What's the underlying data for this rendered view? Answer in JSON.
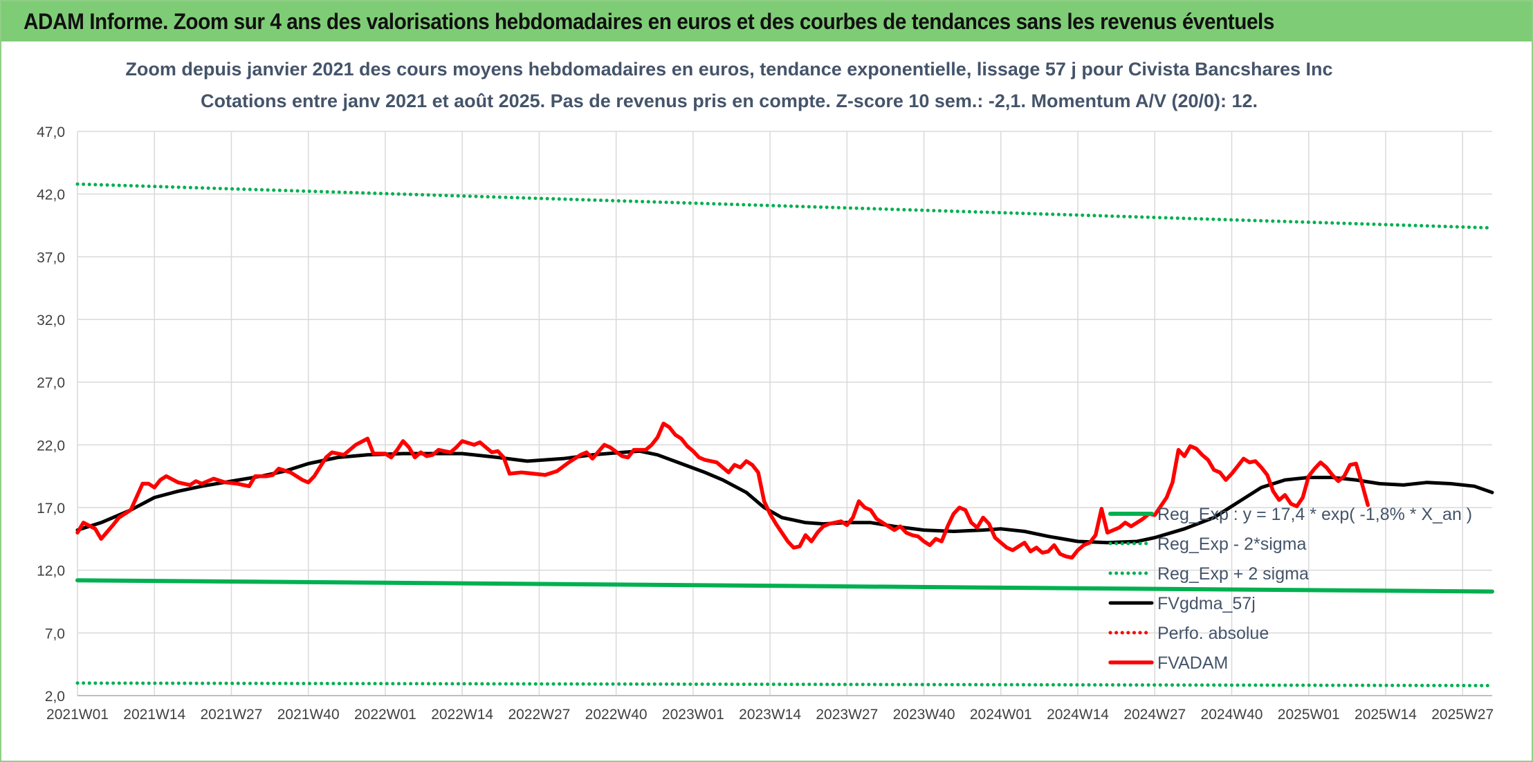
{
  "banner": {
    "title": "ADAM Informe. Zoom sur 4 ans des valorisations hebdomadaires en euros et des courbes de tendances sans les revenus éventuels"
  },
  "chart_data": {
    "type": "line",
    "title": "Zoom depuis janvier 2021 des cours moyens hebdomadaires en euros, tendance exponentielle, lissage 57 j pour Civista Bancshares Inc",
    "subtitle": "Cotations entre janv 2021 et août 2025. Pas de revenus pris en compte. Z-score 10 sem.: -2,1. Momentum A/V (20/0): 12.",
    "xlabel": "",
    "ylabel": "",
    "ylim": [
      2,
      47
    ],
    "yticks": [
      "2,0",
      "7,0",
      "12,0",
      "17,0",
      "22,0",
      "27,0",
      "32,0",
      "37,0",
      "42,0",
      "47,0"
    ],
    "x_range": [
      1,
      240
    ],
    "xticks": [
      {
        "x": 1,
        "label": "2021W01"
      },
      {
        "x": 14,
        "label": "2021W14"
      },
      {
        "x": 27,
        "label": "2021W27"
      },
      {
        "x": 40,
        "label": "2021W40"
      },
      {
        "x": 53,
        "label": "2022W01"
      },
      {
        "x": 66,
        "label": "2022W14"
      },
      {
        "x": 79,
        "label": "2022W27"
      },
      {
        "x": 92,
        "label": "2022W40"
      },
      {
        "x": 105,
        "label": "2023W01"
      },
      {
        "x": 118,
        "label": "2023W14"
      },
      {
        "x": 131,
        "label": "2023W27"
      },
      {
        "x": 144,
        "label": "2023W40"
      },
      {
        "x": 157,
        "label": "2024W01"
      },
      {
        "x": 170,
        "label": "2024W14"
      },
      {
        "x": 183,
        "label": "2024W27"
      },
      {
        "x": 196,
        "label": "2024W40"
      },
      {
        "x": 209,
        "label": "2025W01"
      },
      {
        "x": 222,
        "label": "2025W14"
      },
      {
        "x": 235,
        "label": "2025W27"
      }
    ],
    "grid": true,
    "legend_position": "lower-right",
    "series": [
      {
        "name": "Reg_Exp : y = 17,4 * exp( -1,8% * X_an )",
        "color": "#00b050",
        "style": "solid",
        "points": [
          [
            1,
            11.2
          ],
          [
            240,
            10.3
          ]
        ]
      },
      {
        "name": "Reg_Exp - 2*sigma",
        "color": "#00b050",
        "style": "dotted",
        "points": [
          [
            1,
            3.0
          ],
          [
            240,
            2.8
          ]
        ]
      },
      {
        "name": "Reg_Exp + 2 sigma",
        "color": "#00b050",
        "style": "dotted",
        "points": [
          [
            1,
            42.8
          ],
          [
            240,
            39.3
          ]
        ]
      },
      {
        "name": "FVgdma_57j",
        "color": "#000000",
        "style": "solid",
        "points": [
          [
            1,
            15.2
          ],
          [
            5,
            15.8
          ],
          [
            10,
            16.8
          ],
          [
            14,
            17.8
          ],
          [
            18,
            18.3
          ],
          [
            22,
            18.7
          ],
          [
            27,
            19.1
          ],
          [
            32,
            19.5
          ],
          [
            36,
            19.9
          ],
          [
            40,
            20.5
          ],
          [
            45,
            21.0
          ],
          [
            50,
            21.2
          ],
          [
            56,
            21.3
          ],
          [
            62,
            21.3
          ],
          [
            66,
            21.3
          ],
          [
            72,
            21.0
          ],
          [
            77,
            20.7
          ],
          [
            83,
            20.9
          ],
          [
            88,
            21.2
          ],
          [
            93,
            21.4
          ],
          [
            96,
            21.5
          ],
          [
            99,
            21.2
          ],
          [
            103,
            20.5
          ],
          [
            107,
            19.8
          ],
          [
            110,
            19.2
          ],
          [
            114,
            18.2
          ],
          [
            117,
            17.0
          ],
          [
            120,
            16.2
          ],
          [
            124,
            15.8
          ],
          [
            127,
            15.7
          ],
          [
            131,
            15.8
          ],
          [
            135,
            15.8
          ],
          [
            139,
            15.5
          ],
          [
            144,
            15.2
          ],
          [
            149,
            15.1
          ],
          [
            154,
            15.2
          ],
          [
            157,
            15.3
          ],
          [
            161,
            15.1
          ],
          [
            165,
            14.7
          ],
          [
            170,
            14.3
          ],
          [
            175,
            14.2
          ],
          [
            180,
            14.3
          ],
          [
            183,
            14.6
          ],
          [
            188,
            15.3
          ],
          [
            193,
            16.2
          ],
          [
            197,
            17.4
          ],
          [
            201,
            18.6
          ],
          [
            205,
            19.2
          ],
          [
            209,
            19.4
          ],
          [
            213,
            19.4
          ],
          [
            217,
            19.2
          ],
          [
            221,
            18.9
          ],
          [
            225,
            18.8
          ],
          [
            229,
            19.0
          ],
          [
            233,
            18.9
          ],
          [
            237,
            18.7
          ],
          [
            240,
            18.2
          ]
        ]
      },
      {
        "name": "Perfo. absolue",
        "color": "#ff0000",
        "style": "dotted",
        "points": []
      },
      {
        "name": "FVADAM",
        "color": "#ff0000",
        "style": "solid",
        "points": [
          [
            1,
            15.0
          ],
          [
            2,
            15.8
          ],
          [
            4,
            15.3
          ],
          [
            5,
            14.5
          ],
          [
            7,
            15.6
          ],
          [
            8,
            16.2
          ],
          [
            10,
            16.8
          ],
          [
            12,
            18.9
          ],
          [
            13,
            18.9
          ],
          [
            14,
            18.6
          ],
          [
            15,
            19.2
          ],
          [
            16,
            19.5
          ],
          [
            18,
            19.0
          ],
          [
            20,
            18.8
          ],
          [
            21,
            19.1
          ],
          [
            22,
            18.9
          ],
          [
            24,
            19.3
          ],
          [
            26,
            19.0
          ],
          [
            28,
            18.9
          ],
          [
            30,
            18.7
          ],
          [
            31,
            19.5
          ],
          [
            33,
            19.5
          ],
          [
            34,
            19.6
          ],
          [
            35,
            20.1
          ],
          [
            37,
            19.8
          ],
          [
            39,
            19.2
          ],
          [
            40,
            19.0
          ],
          [
            41,
            19.5
          ],
          [
            43,
            21.0
          ],
          [
            44,
            21.4
          ],
          [
            46,
            21.2
          ],
          [
            48,
            22.0
          ],
          [
            50,
            22.5
          ],
          [
            51,
            21.3
          ],
          [
            53,
            21.3
          ],
          [
            54,
            21.0
          ],
          [
            55,
            21.6
          ],
          [
            56,
            22.3
          ],
          [
            57,
            21.8
          ],
          [
            58,
            21.0
          ],
          [
            59,
            21.4
          ],
          [
            60,
            21.1
          ],
          [
            61,
            21.2
          ],
          [
            62,
            21.6
          ],
          [
            64,
            21.4
          ],
          [
            65,
            21.8
          ],
          [
            66,
            22.3
          ],
          [
            68,
            22.0
          ],
          [
            69,
            22.2
          ],
          [
            71,
            21.4
          ],
          [
            72,
            21.5
          ],
          [
            73,
            21.0
          ],
          [
            74,
            19.7
          ],
          [
            76,
            19.8
          ],
          [
            78,
            19.7
          ],
          [
            80,
            19.6
          ],
          [
            82,
            19.9
          ],
          [
            84,
            20.6
          ],
          [
            86,
            21.2
          ],
          [
            87,
            21.4
          ],
          [
            88,
            20.9
          ],
          [
            90,
            22.0
          ],
          [
            91,
            21.8
          ],
          [
            93,
            21.1
          ],
          [
            94,
            21.0
          ],
          [
            95,
            21.6
          ],
          [
            97,
            21.6
          ],
          [
            98,
            22.0
          ],
          [
            99,
            22.6
          ],
          [
            100,
            23.7
          ],
          [
            101,
            23.4
          ],
          [
            102,
            22.8
          ],
          [
            103,
            22.5
          ],
          [
            104,
            21.9
          ],
          [
            105,
            21.5
          ],
          [
            106,
            21.0
          ],
          [
            107,
            20.8
          ],
          [
            109,
            20.6
          ],
          [
            110,
            20.2
          ],
          [
            111,
            19.8
          ],
          [
            112,
            20.4
          ],
          [
            113,
            20.2
          ],
          [
            114,
            20.7
          ],
          [
            115,
            20.4
          ],
          [
            116,
            19.8
          ],
          [
            117,
            17.5
          ],
          [
            118,
            16.5
          ],
          [
            119,
            15.7
          ],
          [
            120,
            15.0
          ],
          [
            121,
            14.3
          ],
          [
            122,
            13.8
          ],
          [
            123,
            13.9
          ],
          [
            124,
            14.8
          ],
          [
            125,
            14.3
          ],
          [
            126,
            15.0
          ],
          [
            127,
            15.5
          ],
          [
            128,
            15.7
          ],
          [
            130,
            15.9
          ],
          [
            131,
            15.6
          ],
          [
            132,
            16.2
          ],
          [
            133,
            17.5
          ],
          [
            134,
            17.0
          ],
          [
            135,
            16.8
          ],
          [
            136,
            16.1
          ],
          [
            137,
            15.8
          ],
          [
            138,
            15.5
          ],
          [
            139,
            15.2
          ],
          [
            140,
            15.5
          ],
          [
            141,
            15.0
          ],
          [
            142,
            14.8
          ],
          [
            143,
            14.7
          ],
          [
            144,
            14.3
          ],
          [
            145,
            14.0
          ],
          [
            146,
            14.5
          ],
          [
            147,
            14.3
          ],
          [
            148,
            15.5
          ],
          [
            149,
            16.5
          ],
          [
            150,
            17.0
          ],
          [
            151,
            16.8
          ],
          [
            152,
            15.8
          ],
          [
            153,
            15.4
          ],
          [
            154,
            16.2
          ],
          [
            155,
            15.7
          ],
          [
            156,
            14.6
          ],
          [
            157,
            14.2
          ],
          [
            158,
            13.8
          ],
          [
            159,
            13.6
          ],
          [
            160,
            13.9
          ],
          [
            161,
            14.2
          ],
          [
            162,
            13.5
          ],
          [
            163,
            13.8
          ],
          [
            164,
            13.4
          ],
          [
            165,
            13.5
          ],
          [
            166,
            14.0
          ],
          [
            167,
            13.3
          ],
          [
            168,
            13.1
          ],
          [
            169,
            13.0
          ],
          [
            170,
            13.6
          ],
          [
            171,
            14.0
          ],
          [
            172,
            14.2
          ],
          [
            173,
            14.8
          ],
          [
            174,
            16.9
          ],
          [
            175,
            15.0
          ],
          [
            176,
            15.2
          ],
          [
            177,
            15.4
          ],
          [
            178,
            15.8
          ],
          [
            179,
            15.5
          ],
          [
            180,
            15.8
          ],
          [
            181,
            16.1
          ],
          [
            182,
            16.5
          ],
          [
            183,
            16.4
          ],
          [
            184,
            17.1
          ],
          [
            185,
            17.8
          ],
          [
            186,
            19.0
          ],
          [
            187,
            21.6
          ],
          [
            188,
            21.1
          ],
          [
            189,
            21.9
          ],
          [
            190,
            21.7
          ],
          [
            191,
            21.2
          ],
          [
            192,
            20.8
          ],
          [
            193,
            20.0
          ],
          [
            194,
            19.8
          ],
          [
            195,
            19.2
          ],
          [
            196,
            19.7
          ],
          [
            197,
            20.3
          ],
          [
            198,
            20.9
          ],
          [
            199,
            20.6
          ],
          [
            200,
            20.7
          ],
          [
            201,
            20.2
          ],
          [
            202,
            19.6
          ],
          [
            203,
            18.3
          ],
          [
            204,
            17.6
          ],
          [
            205,
            18.0
          ],
          [
            206,
            17.3
          ],
          [
            207,
            17.1
          ],
          [
            208,
            17.8
          ],
          [
            209,
            19.5
          ],
          [
            210,
            20.1
          ],
          [
            211,
            20.6
          ],
          [
            212,
            20.2
          ],
          [
            213,
            19.6
          ],
          [
            214,
            19.1
          ],
          [
            215,
            19.5
          ],
          [
            216,
            20.4
          ],
          [
            217,
            20.5
          ],
          [
            218,
            18.9
          ],
          [
            219,
            17.2
          ]
        ]
      }
    ]
  }
}
